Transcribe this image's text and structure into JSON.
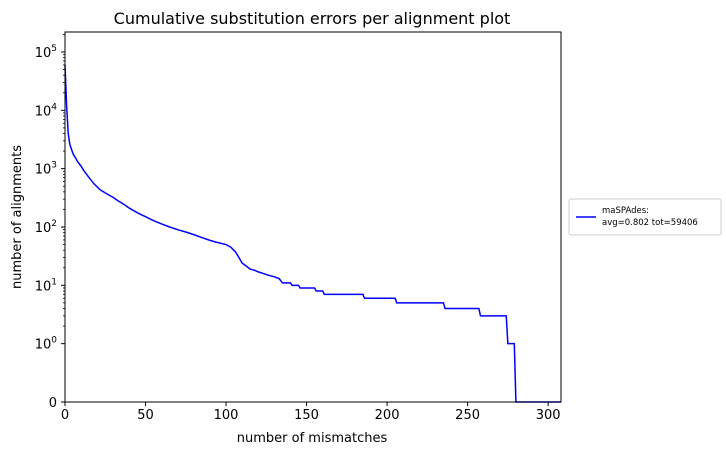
{
  "chart_data": {
    "type": "line",
    "title": "Cumulative substitution errors per alignment plot",
    "xlabel": "number of mismatches",
    "ylabel": "number of alignments",
    "xlim": [
      0,
      308
    ],
    "y_scale": "symlog",
    "y_max": 220000,
    "grid": false,
    "legend_placement": "outside-right",
    "x_ticks": [
      0,
      50,
      100,
      150,
      200,
      250,
      300
    ],
    "x_tick_labels": [
      "0",
      "50",
      "100",
      "150",
      "200",
      "250",
      "300"
    ],
    "y_ticks": [
      {
        "value": 0,
        "base": "0",
        "exp": ""
      },
      {
        "value": 1,
        "base": "10",
        "exp": "0"
      },
      {
        "value": 10,
        "base": "10",
        "exp": "1"
      },
      {
        "value": 100,
        "base": "10",
        "exp": "2"
      },
      {
        "value": 1000,
        "base": "10",
        "exp": "3"
      },
      {
        "value": 10000,
        "base": "10",
        "exp": "4"
      },
      {
        "value": 100000,
        "base": "10",
        "exp": "5"
      }
    ],
    "series": [
      {
        "name": "maSPAdes:",
        "legend_line2": "avg=0.802 tot=59406",
        "color": "#0000ff",
        "points": [
          [
            0,
            59406
          ],
          [
            1,
            12000
          ],
          [
            2,
            4000
          ],
          [
            3,
            2600
          ],
          [
            5,
            1800
          ],
          [
            8,
            1300
          ],
          [
            10,
            1100
          ],
          [
            12,
            900
          ],
          [
            15,
            700
          ],
          [
            18,
            550
          ],
          [
            22,
            430
          ],
          [
            26,
            370
          ],
          [
            30,
            320
          ],
          [
            33,
            280
          ],
          [
            36,
            250
          ],
          [
            40,
            210
          ],
          [
            45,
            175
          ],
          [
            50,
            150
          ],
          [
            55,
            128
          ],
          [
            60,
            113
          ],
          [
            65,
            100
          ],
          [
            70,
            90
          ],
          [
            75,
            82
          ],
          [
            80,
            74
          ],
          [
            85,
            66
          ],
          [
            90,
            59
          ],
          [
            95,
            54
          ],
          [
            100,
            50
          ],
          [
            103,
            45
          ],
          [
            106,
            37
          ],
          [
            108,
            30
          ],
          [
            110,
            24
          ],
          [
            112,
            22
          ],
          [
            115,
            19
          ],
          [
            118,
            18
          ],
          [
            120,
            17
          ],
          [
            123,
            16
          ],
          [
            126,
            15
          ],
          [
            130,
            14
          ],
          [
            133,
            13
          ],
          [
            135,
            11
          ],
          [
            140,
            11
          ],
          [
            141,
            10
          ],
          [
            145,
            10
          ],
          [
            146,
            9
          ],
          [
            155,
            9
          ],
          [
            156,
            8
          ],
          [
            160,
            8
          ],
          [
            161,
            7
          ],
          [
            185,
            7
          ],
          [
            186,
            6
          ],
          [
            205,
            6
          ],
          [
            206,
            5
          ],
          [
            235,
            5
          ],
          [
            236,
            4
          ],
          [
            257,
            4
          ],
          [
            258,
            3
          ],
          [
            274,
            3
          ],
          [
            275,
            1
          ],
          [
            279,
            1
          ],
          [
            280,
            0
          ],
          [
            308,
            0
          ]
        ]
      }
    ]
  }
}
